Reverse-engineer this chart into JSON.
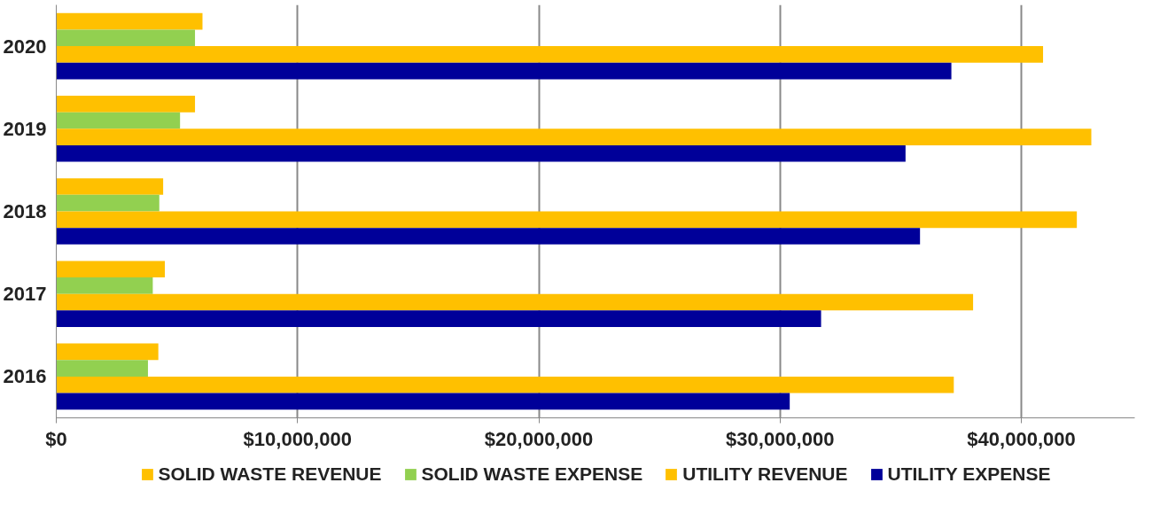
{
  "chart_data": {
    "type": "bar",
    "orientation": "horizontal",
    "categories": [
      "2020",
      "2019",
      "2018",
      "2017",
      "2016"
    ],
    "series": [
      {
        "name": "SOLID WASTE REVENUE",
        "color": "#ffc000",
        "values": [
          6060000,
          5750000,
          4430000,
          4500000,
          4230000
        ]
      },
      {
        "name": "SOLID WASTE EXPENSE",
        "color": "#92d050",
        "values": [
          5750000,
          5130000,
          4270000,
          4000000,
          3800000
        ]
      },
      {
        "name": "UTILITY REVENUE",
        "color": "#ffc000",
        "values": [
          40900000,
          42900000,
          42300000,
          38000000,
          37200000
        ]
      },
      {
        "name": "UTILITY EXPENSE",
        "color": "#000099",
        "values": [
          37100000,
          35200000,
          35800000,
          31700000,
          30400000
        ]
      }
    ],
    "xlim": [
      0,
      44700000
    ],
    "xticks": [
      {
        "value": 0,
        "label": "$0"
      },
      {
        "value": 10000000,
        "label": "$10,000,000"
      },
      {
        "value": 20000000,
        "label": "$20,000,000"
      },
      {
        "value": 30000000,
        "label": "$30,000,000"
      },
      {
        "value": 40000000,
        "label": "$40,000,000"
      }
    ],
    "grid": "x",
    "legend": "bottom"
  }
}
